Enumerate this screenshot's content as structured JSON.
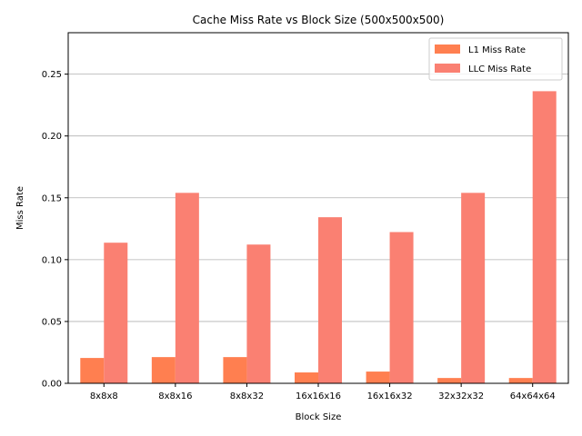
{
  "chart_data": {
    "type": "bar",
    "title": "Cache Miss Rate vs Block Size (500x500x500)",
    "xlabel": "Block Size",
    "ylabel": "Miss Rate",
    "categories": [
      "8x8x8",
      "8x8x16",
      "8x8x32",
      "16x16x16",
      "16x16x32",
      "32x32x32",
      "64x64x64"
    ],
    "series": [
      {
        "name": "L1 Miss Rate",
        "color": "#ff7f50",
        "values": [
          0.0205,
          0.0212,
          0.0212,
          0.0088,
          0.0095,
          0.0043,
          0.0043
        ]
      },
      {
        "name": "LLC Miss Rate",
        "color": "#fa8072",
        "values": [
          0.1137,
          0.154,
          0.1122,
          0.1343,
          0.1223,
          0.154,
          0.2362
        ]
      }
    ],
    "ylim": [
      0,
      0.2835
    ],
    "yticks": [
      0.0,
      0.05,
      0.1,
      0.15,
      0.2,
      0.25
    ],
    "ytick_labels": [
      "0.00",
      "0.05",
      "0.10",
      "0.15",
      "0.20",
      "0.25"
    ],
    "grid": "y",
    "legend_position": "top-right"
  }
}
